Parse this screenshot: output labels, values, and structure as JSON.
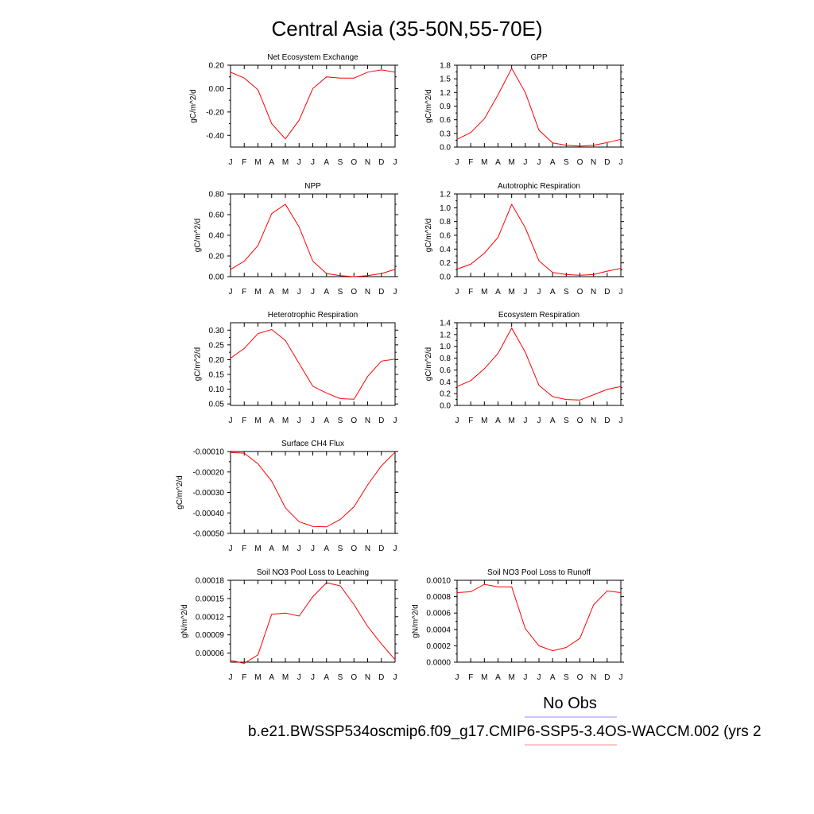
{
  "title": "Central Asia (35-50N,55-70E)",
  "months": [
    "J",
    "F",
    "M",
    "A",
    "M",
    "J",
    "J",
    "A",
    "S",
    "O",
    "N",
    "D",
    "J"
  ],
  "line_color": "#ff0000",
  "legend": {
    "label": "No Obs",
    "obs_line_color": "#8c8cff",
    "model_line_color": "#ff8c8c"
  },
  "caption": "b.e21.BWSSP534oscmip6.f09_g17.CMIP6-SSP5-3.4OS-WACCM.002 (yrs 2",
  "chart_data": [
    {
      "type": "line",
      "title": "Net Ecosystem Exchange",
      "ylabel": "gC/m^2/d",
      "ylim": [
        -0.5,
        0.2
      ],
      "yticks": [
        -0.4,
        -0.2,
        0.0,
        0.2
      ],
      "yticklabels": [
        "-0.40",
        "-0.20",
        "0.00",
        "0.20"
      ],
      "values": [
        0.14,
        0.09,
        -0.01,
        -0.3,
        -0.43,
        -0.27,
        0.0,
        0.1,
        0.09,
        0.09,
        0.14,
        0.16,
        0.14
      ]
    },
    {
      "type": "line",
      "title": "GPP",
      "ylabel": "gC/m^2/d",
      "ylim": [
        0.0,
        1.8
      ],
      "yticks": [
        0.0,
        0.3,
        0.6,
        0.9,
        1.2,
        1.5,
        1.8
      ],
      "yticklabels": [
        "0.0",
        "0.3",
        "0.6",
        "0.9",
        "1.2",
        "1.5",
        "1.8"
      ],
      "values": [
        0.17,
        0.32,
        0.62,
        1.15,
        1.73,
        1.2,
        0.37,
        0.09,
        0.04,
        0.02,
        0.04,
        0.1,
        0.17
      ]
    },
    {
      "type": "line",
      "title": "NPP",
      "ylabel": "gC/m^2/d",
      "ylim": [
        0.0,
        0.8
      ],
      "yticks": [
        0.0,
        0.2,
        0.4,
        0.6,
        0.8
      ],
      "yticklabels": [
        "0.00",
        "0.20",
        "0.40",
        "0.60",
        "0.80"
      ],
      "values": [
        0.07,
        0.15,
        0.3,
        0.61,
        0.7,
        0.48,
        0.15,
        0.03,
        0.01,
        0.0,
        0.01,
        0.03,
        0.07
      ]
    },
    {
      "type": "line",
      "title": "Autotrophic Respiration",
      "ylabel": "gC/m^2/d",
      "ylim": [
        0.0,
        1.2
      ],
      "yticks": [
        0.0,
        0.2,
        0.4,
        0.6,
        0.8,
        1.0,
        1.2
      ],
      "yticklabels": [
        "0.0",
        "0.2",
        "0.4",
        "0.6",
        "0.8",
        "1.0",
        "1.2"
      ],
      "values": [
        0.11,
        0.18,
        0.34,
        0.57,
        1.05,
        0.71,
        0.23,
        0.06,
        0.03,
        0.02,
        0.03,
        0.08,
        0.12
      ]
    },
    {
      "type": "line",
      "title": "Heterotrophic Respiration",
      "ylabel": "gC/m^2/d",
      "ylim": [
        0.045,
        0.325
      ],
      "yticks": [
        0.05,
        0.1,
        0.15,
        0.2,
        0.25,
        0.3
      ],
      "yticklabels": [
        "0.05",
        "0.10",
        "0.15",
        "0.20",
        "0.25",
        "0.30"
      ],
      "values": [
        0.205,
        0.238,
        0.288,
        0.302,
        0.265,
        0.187,
        0.11,
        0.087,
        0.068,
        0.066,
        0.143,
        0.195,
        0.202
      ]
    },
    {
      "type": "line",
      "title": "Ecosystem Respiration",
      "ylabel": "gC/m^2/d",
      "ylim": [
        0.0,
        1.4
      ],
      "yticks": [
        0.0,
        0.2,
        0.4,
        0.6,
        0.8,
        1.0,
        1.2,
        1.4
      ],
      "yticklabels": [
        "0.0",
        "0.2",
        "0.4",
        "0.6",
        "0.8",
        "1.0",
        "1.2",
        "1.4"
      ],
      "values": [
        0.32,
        0.42,
        0.62,
        0.88,
        1.31,
        0.9,
        0.34,
        0.15,
        0.1,
        0.09,
        0.18,
        0.27,
        0.32
      ]
    },
    {
      "type": "line",
      "title": "Surface CH4 Flux",
      "ylabel": "gC/m^2/d",
      "ylim": [
        -0.0005,
        -0.0001
      ],
      "yticks": [
        -0.0005,
        -0.0004,
        -0.0003,
        -0.0002,
        -0.0001
      ],
      "yticklabels": [
        "-0.00050",
        "-0.00040",
        "-0.00030",
        "-0.00020",
        "-0.00010"
      ],
      "values": [
        -0.000105,
        -0.000108,
        -0.00016,
        -0.000245,
        -0.000375,
        -0.000443,
        -0.000466,
        -0.000468,
        -0.000432,
        -0.00037,
        -0.000263,
        -0.00017,
        -0.000103
      ]
    },
    {
      "type": "line",
      "title": "Soil NO3 Pool Loss to Leaching",
      "ylabel": "gN/m^2/d",
      "ylim": [
        4.5e-05,
        0.00018
      ],
      "yticks": [
        6e-05,
        9e-05,
        0.00012,
        0.00015,
        0.00018
      ],
      "yticklabels": [
        "0.00006",
        "0.00009",
        "0.00012",
        "0.00015",
        "0.00018"
      ],
      "values": [
        4.8e-05,
        4.3e-05,
        5.7e-05,
        0.000124,
        0.000126,
        0.000121,
        0.000153,
        0.000176,
        0.000171,
        0.00014,
        0.000104,
        7.5e-05,
        4.9e-05
      ]
    },
    {
      "type": "line",
      "title": "Soil NO3 Pool Loss to Runoff",
      "ylabel": "gN/m^2/d",
      "ylim": [
        0.0,
        0.001
      ],
      "yticks": [
        0.0,
        0.0002,
        0.0004,
        0.0006,
        0.0008,
        0.001
      ],
      "yticklabels": [
        "0.0000",
        "0.0002",
        "0.0004",
        "0.0006",
        "0.0008",
        "0.0010"
      ],
      "values": [
        0.00085,
        0.00086,
        0.00095,
        0.00092,
        0.00092,
        0.00041,
        0.0002,
        0.00014,
        0.00018,
        0.00029,
        0.0007,
        0.00087,
        0.00085
      ]
    }
  ]
}
